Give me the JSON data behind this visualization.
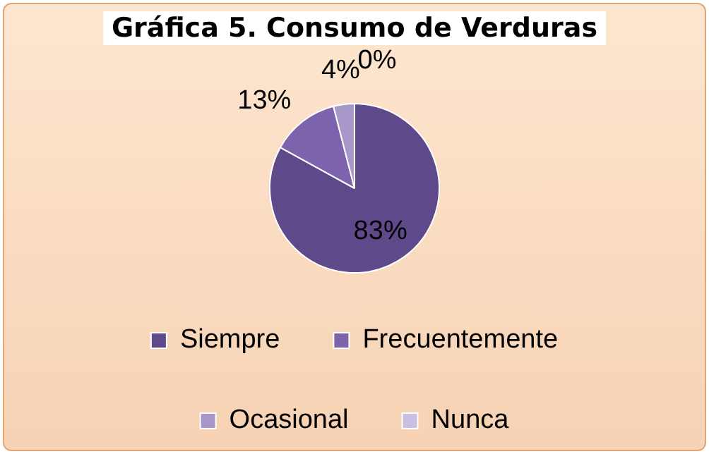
{
  "chart_data": {
    "type": "pie",
    "title": "Gráfica 5. Consumo de Verduras",
    "categories": [
      "Siempre",
      "Frecuentemente",
      "Ocasional",
      "Nunca"
    ],
    "values": [
      83,
      13,
      4,
      0
    ],
    "colors": [
      "#5e4a8a",
      "#7d62ac",
      "#a898c9",
      "#c9bfe2"
    ],
    "value_labels": [
      "83%",
      "13%",
      "4%",
      "0%"
    ],
    "legend": "bottom"
  }
}
